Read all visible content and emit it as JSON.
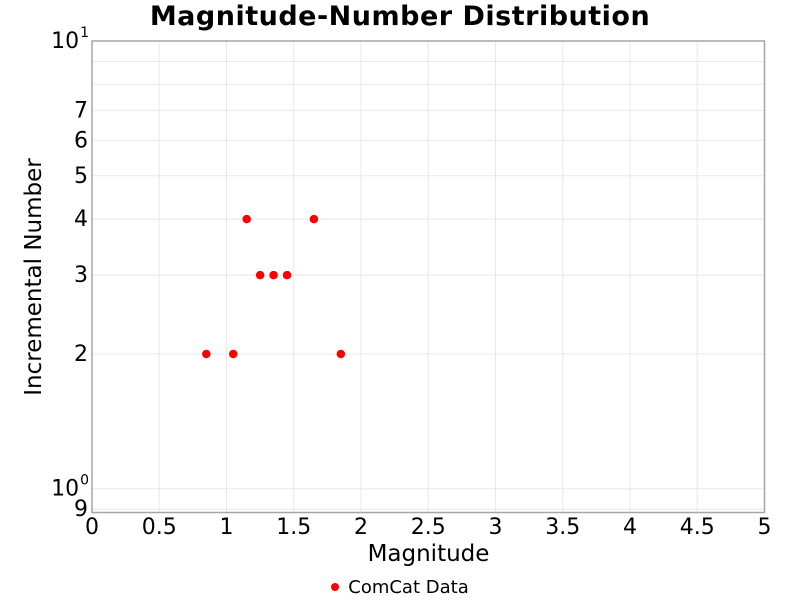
{
  "chart_data": {
    "type": "scatter",
    "title": "Magnitude-Number Distribution",
    "xlabel": "Magnitude",
    "ylabel": "Incremental Number",
    "x_scale": "linear",
    "y_scale": "log",
    "xlim": [
      0,
      5
    ],
    "ylim": [
      0.885,
      10
    ],
    "grid": true,
    "x_ticks": [
      {
        "value": 0,
        "label": "0"
      },
      {
        "value": 0.5,
        "label": "0.5"
      },
      {
        "value": 1,
        "label": "1"
      },
      {
        "value": 1.5,
        "label": "1.5"
      },
      {
        "value": 2,
        "label": "2"
      },
      {
        "value": 2.5,
        "label": "2.5"
      },
      {
        "value": 3,
        "label": "3"
      },
      {
        "value": 3.5,
        "label": "3.5"
      },
      {
        "value": 4,
        "label": "4"
      },
      {
        "value": 4.5,
        "label": "4.5"
      },
      {
        "value": 5,
        "label": "5"
      }
    ],
    "y_major_ticks": [
      {
        "value": 10,
        "base": "10",
        "exponent": "1"
      },
      {
        "value": 1,
        "base": "10",
        "exponent": "0"
      }
    ],
    "y_minor_tick_labels": [
      {
        "value": 7,
        "label": "7"
      },
      {
        "value": 6,
        "label": "6"
      },
      {
        "value": 5,
        "label": "5"
      },
      {
        "value": 4,
        "label": "4"
      },
      {
        "value": 3,
        "label": "3"
      },
      {
        "value": 2,
        "label": "2"
      },
      {
        "value": 0.9,
        "label": "9"
      }
    ],
    "x_gridlines": [
      0.5,
      1,
      1.5,
      2,
      2.5,
      3,
      3.5,
      4,
      4.5
    ],
    "y_gridlines": [
      0.9,
      1,
      2,
      3,
      4,
      5,
      6,
      7,
      8,
      9
    ],
    "series": [
      {
        "name": "ComCat Data",
        "color": "#ff0000",
        "marker": "circle",
        "marker_radius_px": 4.25,
        "points": [
          {
            "x": 0.85,
            "y": 2
          },
          {
            "x": 1.05,
            "y": 2
          },
          {
            "x": 1.15,
            "y": 4
          },
          {
            "x": 1.25,
            "y": 3
          },
          {
            "x": 1.35,
            "y": 3
          },
          {
            "x": 1.45,
            "y": 3
          },
          {
            "x": 1.65,
            "y": 4
          },
          {
            "x": 1.85,
            "y": 2
          }
        ]
      }
    ],
    "legend": {
      "position": "bottom-center",
      "items": [
        {
          "label": "ComCat Data",
          "color": "#ff0000",
          "marker": "circle"
        }
      ]
    }
  },
  "colors": {
    "background": "#ffffff",
    "gridline": "#e8e8e8",
    "spine": "#a6a6a6",
    "text": "#000000",
    "point": "#ff0000"
  }
}
